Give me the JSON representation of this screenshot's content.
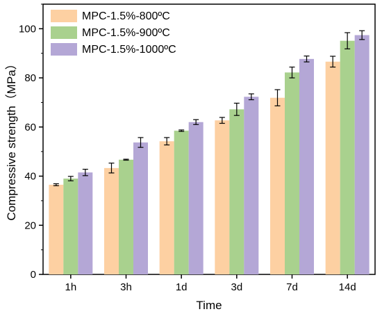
{
  "chart_data": {
    "type": "bar",
    "title": "",
    "xlabel": "Time",
    "ylabel": "Compressive strength（MPa）",
    "categories": [
      "1h",
      "3h",
      "1d",
      "3d",
      "7d",
      "14d"
    ],
    "ylim": [
      0,
      110
    ],
    "yticks": [
      0,
      20,
      40,
      60,
      80,
      100
    ],
    "grid": false,
    "legend_position": "top-left",
    "series": [
      {
        "name": "MPC-1.5%-800ºC",
        "color": "#FDD0A2",
        "values": [
          36.5,
          43.3,
          54.2,
          62.7,
          71.9,
          86.6
        ],
        "errors": [
          0.4,
          2.0,
          1.5,
          1.2,
          3.3,
          2.2
        ]
      },
      {
        "name": "MPC-1.5%-900ºC",
        "color": "#A9D18E",
        "values": [
          39.0,
          46.7,
          58.5,
          67.2,
          82.2,
          95.1
        ],
        "errors": [
          0.9,
          0.2,
          0.3,
          2.5,
          2.2,
          3.3
        ]
      },
      {
        "name": "MPC-1.5%-1000ºC",
        "color": "#B4A7D6",
        "values": [
          41.5,
          53.7,
          62.0,
          72.3,
          87.7,
          97.4
        ],
        "errors": [
          1.3,
          2.0,
          1.0,
          1.2,
          1.2,
          1.8
        ]
      }
    ]
  }
}
